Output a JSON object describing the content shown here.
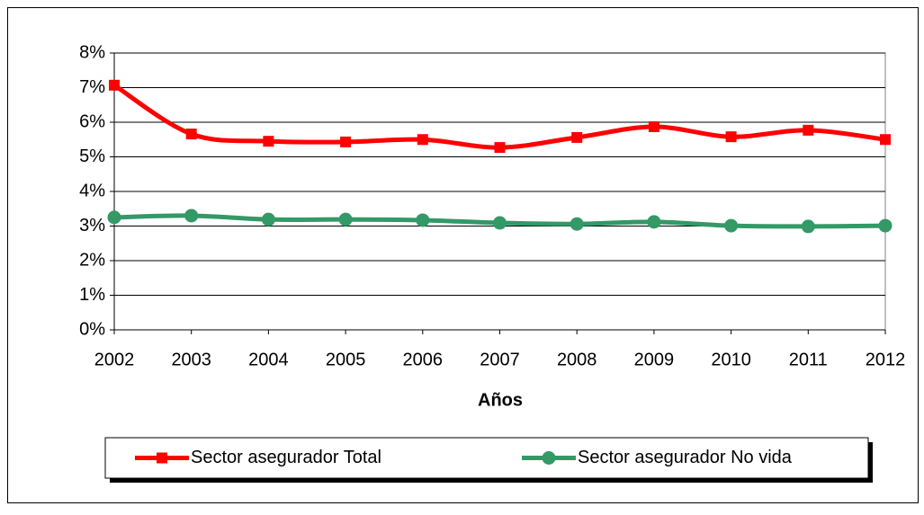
{
  "chart_data": {
    "type": "line",
    "x_label": "Años",
    "categories": [
      "2002",
      "2003",
      "2004",
      "2005",
      "2006",
      "2007",
      "2008",
      "2009",
      "2010",
      "2011",
      "2012"
    ],
    "series": [
      {
        "name": "Sector asegurador Total",
        "color": "#ff0000",
        "marker": "square",
        "values": [
          7.07,
          5.66,
          5.45,
          5.43,
          5.5,
          5.27,
          5.56,
          5.87,
          5.58,
          5.77,
          5.5
        ]
      },
      {
        "name": "Sector asegurador No vida",
        "color": "#339966",
        "marker": "circle",
        "values": [
          3.25,
          3.3,
          3.19,
          3.19,
          3.17,
          3.09,
          3.06,
          3.12,
          3.01,
          2.99,
          3.01
        ]
      }
    ],
    "ylim": [
      0,
      8
    ],
    "yticks": [
      {
        "value": 0,
        "label": "0%"
      },
      {
        "value": 1,
        "label": "1%"
      },
      {
        "value": 2,
        "label": "2%"
      },
      {
        "value": 3,
        "label": "3%"
      },
      {
        "value": 4,
        "label": "4%"
      },
      {
        "value": 5,
        "label": "5%"
      },
      {
        "value": 6,
        "label": "6%"
      },
      {
        "value": 7,
        "label": "7%"
      },
      {
        "value": 8,
        "label": "8%"
      }
    ],
    "grid": true,
    "smooth": true,
    "legend": "bottom"
  }
}
